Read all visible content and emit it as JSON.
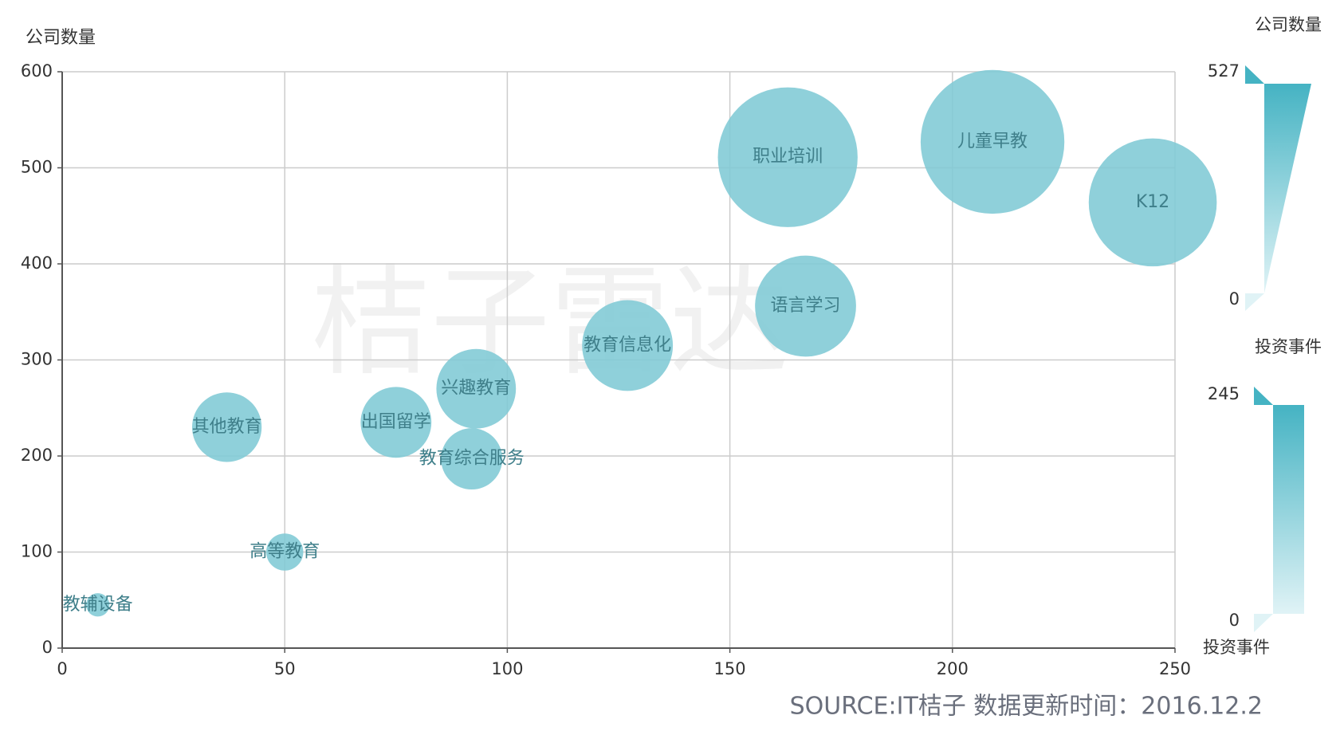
{
  "chart_data": {
    "type": "bubble",
    "y_label": "公司数量",
    "x_label": "投资事件",
    "watermark": "桔子雷达",
    "source": "SOURCE:IT桔子 数据更新时间：2016.12.2",
    "color": "#80cad5",
    "grid": true,
    "xlim": [
      0,
      250
    ],
    "xticks": [
      0,
      50,
      100,
      150,
      200,
      250
    ],
    "ylim": [
      0,
      600
    ],
    "yticks": [
      0,
      100,
      200,
      300,
      400,
      500,
      600
    ],
    "labels": [
      "教辅设备",
      "高等教育",
      "其他教育",
      "出国留学",
      "兴趣教育",
      "教育综合服务",
      "教育信息化",
      "语言学习",
      "职业培训",
      "儿童早教",
      "K12"
    ],
    "x": [
      8,
      50,
      37,
      75,
      93,
      92,
      127,
      167,
      163,
      209,
      245
    ],
    "y": [
      45,
      100,
      230,
      235,
      270,
      197,
      315,
      356,
      511,
      527,
      464
    ],
    "visual_maps": [
      {
        "title": "公司数量",
        "range": [
          0,
          527
        ]
      },
      {
        "title": "投资事件",
        "range": [
          0,
          245
        ]
      }
    ]
  }
}
